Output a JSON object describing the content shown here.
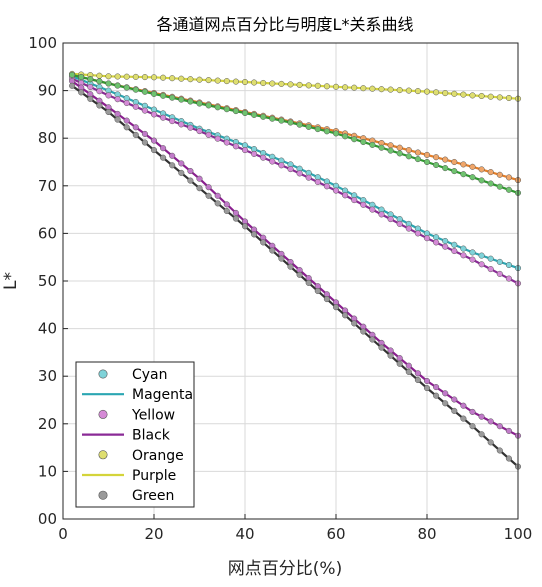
{
  "chart_data": {
    "type": "scatter",
    "title": "各通道网点百分比与明度L*关系曲线",
    "xlabel": "网点百分比(%)",
    "ylabel": "L*",
    "xlim": [
      0,
      100
    ],
    "ylim": [
      0,
      100
    ],
    "xticks": [
      0,
      20,
      40,
      60,
      80,
      100
    ],
    "yticks": [
      0,
      10,
      20,
      30,
      40,
      50,
      60,
      70,
      80,
      90,
      100
    ],
    "grid": true,
    "legend_position": "bottom-left",
    "legend": [
      {
        "label": "Cyan",
        "kind": "marker",
        "color": "#7fd3d9"
      },
      {
        "label": "Magenta",
        "kind": "line",
        "color": "#2aa6b2"
      },
      {
        "label": "Yellow",
        "kind": "marker",
        "color": "#d58ad6"
      },
      {
        "label": "Black",
        "kind": "line",
        "color": "#8a2a96"
      },
      {
        "label": "Orange",
        "kind": "marker",
        "color": "#dede70"
      },
      {
        "label": "Purple",
        "kind": "line",
        "color": "#d4d43a"
      },
      {
        "label": "Green",
        "kind": "marker",
        "color": "#9a9a9a"
      }
    ],
    "series": [
      {
        "id": "teal",
        "marker_color": "#7fd3d9",
        "line_color": "#2aa6b2",
        "x": [
          2,
          10,
          20,
          30,
          40,
          50,
          60,
          70,
          80,
          90,
          100
        ],
        "y": [
          93,
          90,
          86,
          82,
          78.5,
          74.5,
          70,
          65,
          60,
          56,
          52.7
        ]
      },
      {
        "id": "violet",
        "marker_color": "#d58ad6",
        "line_color": "#8a2a96",
        "x": [
          2,
          10,
          20,
          30,
          40,
          50,
          60,
          70,
          80,
          90,
          100
        ],
        "y": [
          92.5,
          89,
          85,
          81.5,
          77.5,
          73.5,
          69,
          64,
          59,
          54.5,
          49.5
        ]
      },
      {
        "id": "yellow",
        "marker_color": "#dede70",
        "line_color": "#d4d43a",
        "x": [
          2,
          10,
          20,
          30,
          40,
          50,
          60,
          70,
          80,
          90,
          100
        ],
        "y": [
          93.5,
          93,
          92.8,
          92.3,
          91.8,
          91.3,
          90.8,
          90.3,
          89.8,
          89,
          88.3
        ]
      },
      {
        "id": "orange",
        "marker_color": "#f0a66a",
        "line_color": "#e57e27",
        "x": [
          2,
          10,
          20,
          30,
          40,
          50,
          60,
          70,
          80,
          90,
          100
        ],
        "y": [
          93.3,
          91.5,
          89.5,
          87.5,
          85.5,
          83.5,
          81.5,
          79,
          76.5,
          74,
          71.2
        ]
      },
      {
        "id": "green",
        "marker_color": "#6fc36f",
        "line_color": "#2e9a2e",
        "x": [
          2,
          10,
          20,
          30,
          40,
          50,
          60,
          70,
          80,
          90,
          100
        ],
        "y": [
          93.3,
          91.5,
          89.3,
          87.3,
          85.3,
          83.3,
          81,
          78,
          75,
          71.8,
          68.5
        ]
      },
      {
        "id": "magenta-dark",
        "marker_color": "#c17ac9",
        "line_color": "#8a1f8f",
        "x": [
          2,
          10,
          20,
          30,
          40,
          50,
          60,
          70,
          80,
          90,
          100
        ],
        "y": [
          92,
          86.5,
          79.5,
          71.5,
          62.5,
          54,
          45.5,
          37,
          29,
          22.5,
          17.5
        ]
      },
      {
        "id": "gray",
        "marker_color": "#9a9a9a",
        "line_color": "#333333",
        "x": [
          2,
          10,
          20,
          30,
          40,
          50,
          60,
          70,
          80,
          90,
          100
        ],
        "y": [
          91,
          85.5,
          77.5,
          69.5,
          61.5,
          53,
          44.5,
          36,
          27.5,
          19.5,
          11
        ]
      }
    ]
  }
}
